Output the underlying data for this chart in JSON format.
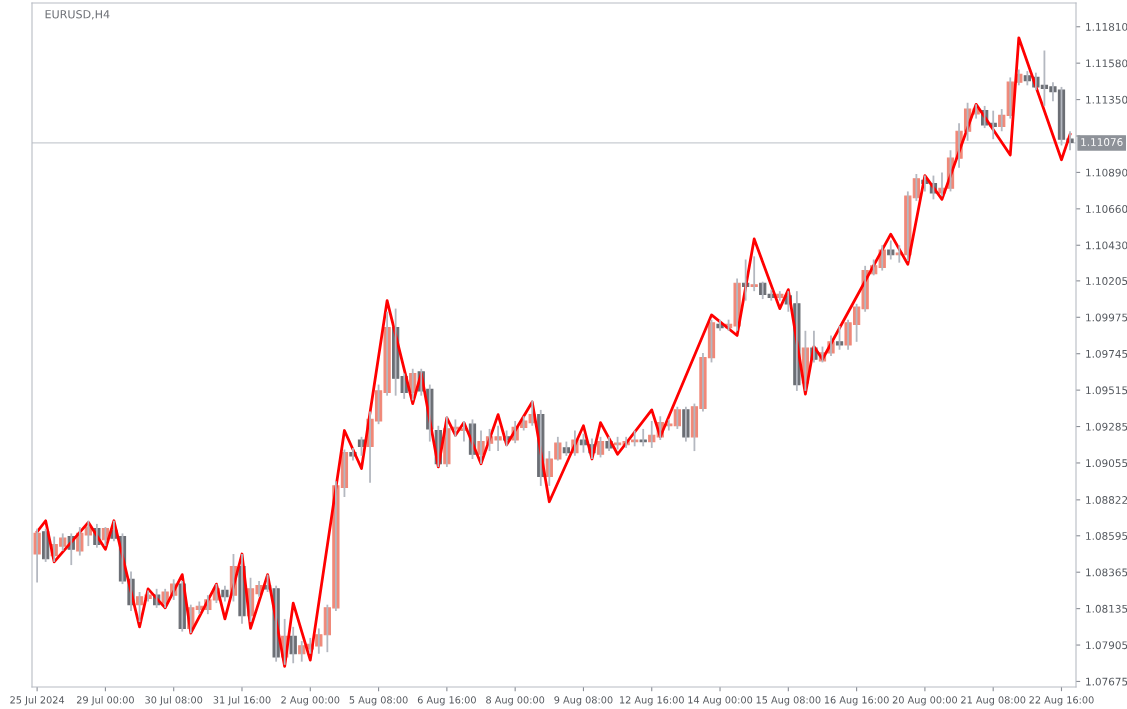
{
  "chart_data": {
    "type": "candlestick",
    "title": "EURUSD,H4",
    "grid": false,
    "categories": [
      "25 Jul 2024",
      null,
      null,
      null,
      null,
      null,
      null,
      null,
      "29 Jul 00:00",
      null,
      null,
      null,
      null,
      null,
      null,
      null,
      "30 Jul 08:00",
      null,
      null,
      null,
      null,
      null,
      null,
      null,
      "31 Jul 16:00",
      null,
      null,
      null,
      null,
      null,
      null,
      null,
      "2 Aug 00:00",
      null,
      null,
      null,
      null,
      null,
      null,
      null,
      "5 Aug 08:00",
      null,
      null,
      null,
      null,
      null,
      null,
      null,
      "6 Aug 16:00",
      null,
      null,
      null,
      null,
      null,
      null,
      null,
      "8 Aug 00:00",
      null,
      null,
      null,
      null,
      null,
      null,
      null,
      "9 Aug 08:00",
      null,
      null,
      null,
      null,
      null,
      null,
      null,
      "12 Aug 16:00",
      null,
      null,
      null,
      null,
      null,
      null,
      null,
      "14 Aug 00:00",
      null,
      null,
      null,
      null,
      null,
      null,
      null,
      "15 Aug 08:00",
      null,
      null,
      null,
      null,
      null,
      null,
      null,
      "16 Aug 16:00",
      null,
      null,
      null,
      null,
      null,
      null,
      null,
      "20 Aug 00:00",
      null,
      null,
      null,
      null,
      null,
      null,
      null,
      "21 Aug 08:00",
      null,
      null,
      null,
      null,
      null,
      null,
      null,
      "22 Aug 16:00",
      null
    ],
    "ylim": [
      1.0764,
      1.1196
    ],
    "yticks": [
      {
        "value": 1.07675,
        "label": "1.07675"
      },
      {
        "value": 1.07905,
        "label": "1.07905"
      },
      {
        "value": 1.08135,
        "label": "1.08135"
      },
      {
        "value": 1.08365,
        "label": "1.08365"
      },
      {
        "value": 1.08595,
        "label": "1.08595"
      },
      {
        "value": 1.08822,
        "label": "1.08822"
      },
      {
        "value": 1.09055,
        "label": "1.09055"
      },
      {
        "value": 1.09285,
        "label": "1.09285"
      },
      {
        "value": 1.09515,
        "label": "1.09515"
      },
      {
        "value": 1.09745,
        "label": "1.09745"
      },
      {
        "value": 1.09975,
        "label": "1.09975"
      },
      {
        "value": 1.10205,
        "label": "1.10205"
      },
      {
        "value": 1.1043,
        "label": "1.10430"
      },
      {
        "value": 1.1066,
        "label": "1.10660"
      },
      {
        "value": 1.1089,
        "label": "1.10890"
      },
      {
        "value": 1.1112,
        "label": null
      },
      {
        "value": 1.1135,
        "label": "1.11350"
      },
      {
        "value": 1.1158,
        "label": "1.11580"
      },
      {
        "value": 1.1181,
        "label": "1.11810"
      }
    ],
    "ref_lines": [
      {
        "axis": "y",
        "value": 1.11076,
        "label": "1.11076",
        "color": "#c8ccd2"
      }
    ],
    "ohlc": [
      [
        1.0848,
        1.0864,
        1.083,
        1.0861
      ],
      [
        1.0862,
        1.0864,
        1.0843,
        1.0845
      ],
      [
        1.0847,
        1.0859,
        1.0843,
        1.0854
      ],
      [
        1.0853,
        1.0861,
        1.085,
        1.0858
      ],
      [
        1.0859,
        1.0861,
        1.0841,
        1.0851
      ],
      [
        1.085,
        1.0865,
        1.0847,
        1.0861
      ],
      [
        1.086,
        1.0869,
        1.0853,
        1.0865
      ],
      [
        1.0864,
        1.0867,
        1.0852,
        1.0854
      ],
      [
        1.0857,
        1.0865,
        1.0853,
        1.0864
      ],
      [
        1.0863,
        1.0869,
        1.0856,
        1.0858
      ],
      [
        1.0859,
        1.0861,
        1.0829,
        1.0831
      ],
      [
        1.0832,
        1.0837,
        1.0812,
        1.0816
      ],
      [
        1.0816,
        1.0824,
        1.0805,
        1.0821
      ],
      [
        1.082,
        1.0825,
        1.0818,
        1.0822
      ],
      [
        1.0822,
        1.0826,
        1.0814,
        1.0816
      ],
      [
        1.0817,
        1.0826,
        1.0814,
        1.0824
      ],
      [
        1.0822,
        1.0832,
        1.0819,
        1.0829
      ],
      [
        1.0829,
        1.0831,
        1.0799,
        1.0801
      ],
      [
        1.0801,
        1.0816,
        1.0798,
        1.0814
      ],
      [
        1.0813,
        1.0818,
        1.081,
        1.0815
      ],
      [
        1.0813,
        1.0822,
        1.081,
        1.0819
      ],
      [
        1.0819,
        1.0829,
        1.0817,
        1.0826
      ],
      [
        1.0825,
        1.0828,
        1.0818,
        1.0821
      ],
      [
        1.0822,
        1.0848,
        1.0818,
        1.084
      ],
      [
        1.084,
        1.0848,
        1.0804,
        1.0809
      ],
      [
        1.0809,
        1.0833,
        1.0805,
        1.0826
      ],
      [
        1.0823,
        1.0831,
        1.0821,
        1.0828
      ],
      [
        1.0828,
        1.0835,
        1.0824,
        1.0826
      ],
      [
        1.0826,
        1.0828,
        1.078,
        1.0783
      ],
      [
        1.0783,
        1.0807,
        1.0778,
        1.0796
      ],
      [
        1.0796,
        1.0802,
        1.0779,
        1.0785
      ],
      [
        1.0785,
        1.0793,
        1.078,
        1.079
      ],
      [
        1.0788,
        1.0795,
        1.0785,
        1.0791
      ],
      [
        1.079,
        1.0801,
        1.0785,
        1.0797
      ],
      [
        1.0797,
        1.0816,
        1.0786,
        1.0814
      ],
      [
        1.0814,
        1.0894,
        1.0812,
        1.0891
      ],
      [
        1.089,
        1.0914,
        1.0884,
        1.0912
      ],
      [
        1.0912,
        1.0915,
        1.0907,
        1.091
      ],
      [
        1.092,
        1.0922,
        1.091,
        1.0916
      ],
      [
        1.0916,
        1.0938,
        1.0893,
        1.0933
      ],
      [
        1.0932,
        1.0955,
        1.093,
        1.0951
      ],
      [
        1.095,
        1.1001,
        1.0948,
        1.0991
      ],
      [
        1.0991,
        1.1003,
        1.0948,
        1.0959
      ],
      [
        1.096,
        1.0962,
        1.0946,
        1.095
      ],
      [
        1.095,
        1.0965,
        1.0945,
        1.0962
      ],
      [
        1.0963,
        1.0965,
        1.0948,
        1.0951
      ],
      [
        1.0952,
        1.0955,
        1.0919,
        1.0927
      ],
      [
        1.0926,
        1.0929,
        1.0903,
        1.0905
      ],
      [
        1.0905,
        1.0935,
        1.0903,
        1.0927
      ],
      [
        1.0927,
        1.0933,
        1.0922,
        1.0928
      ],
      [
        1.0926,
        1.0932,
        1.0919,
        1.0927
      ],
      [
        1.093,
        1.0933,
        1.0908,
        1.0911
      ],
      [
        1.0911,
        1.0926,
        1.0905,
        1.0919
      ],
      [
        1.0918,
        1.0927,
        1.0913,
        1.0922
      ],
      [
        1.092,
        1.0929,
        1.0913,
        1.0922
      ],
      [
        1.0922,
        1.0926,
        1.0916,
        1.092
      ],
      [
        1.092,
        1.0932,
        1.0918,
        1.0928
      ],
      [
        1.0928,
        1.0935,
        1.0926,
        1.0932
      ],
      [
        1.0931,
        1.0945,
        1.0929,
        1.0936
      ],
      [
        1.0936,
        1.0939,
        1.0891,
        1.0897
      ],
      [
        1.0897,
        1.0913,
        1.0891,
        1.0908
      ],
      [
        1.0908,
        1.0922,
        1.0907,
        1.0918
      ],
      [
        1.0915,
        1.0919,
        1.091,
        1.0912
      ],
      [
        1.0912,
        1.0926,
        1.091,
        1.092
      ],
      [
        1.092,
        1.0924,
        1.0912,
        1.0917
      ],
      [
        1.0917,
        1.0921,
        1.0908,
        1.0912
      ],
      [
        1.0911,
        1.0922,
        1.0909,
        1.0919
      ],
      [
        1.0919,
        1.0922,
        1.0913,
        1.0915
      ],
      [
        1.0917,
        1.0922,
        1.0914,
        1.0918
      ],
      [
        1.0917,
        1.0922,
        1.0915,
        1.0919
      ],
      [
        1.0919,
        1.0926,
        1.0916,
        1.092
      ],
      [
        1.092,
        1.0927,
        1.0916,
        1.0919
      ],
      [
        1.0919,
        1.0932,
        1.0915,
        1.0923
      ],
      [
        1.0922,
        1.0935,
        1.092,
        1.0931
      ],
      [
        1.0929,
        1.0933,
        1.0926,
        1.093
      ],
      [
        1.0929,
        1.0941,
        1.0927,
        1.0939
      ],
      [
        1.0939,
        1.0941,
        1.0919,
        1.0922
      ],
      [
        1.0922,
        1.0943,
        1.0913,
        1.0941
      ],
      [
        1.094,
        1.0975,
        1.0938,
        1.0972
      ],
      [
        1.0972,
        1.0996,
        1.0969,
        1.0994
      ],
      [
        1.0993,
        1.0996,
        1.0989,
        1.0991
      ],
      [
        1.0991,
        1.0996,
        1.0989,
        1.0993
      ],
      [
        1.0992,
        1.1022,
        1.0989,
        1.1019
      ],
      [
        1.1019,
        1.1034,
        1.1008,
        1.1017
      ],
      [
        1.1017,
        1.1036,
        1.1014,
        1.1018
      ],
      [
        1.1019,
        1.102,
        1.1009,
        1.1012
      ],
      [
        1.1012,
        1.1015,
        1.1008,
        1.101
      ],
      [
        1.101,
        1.1014,
        1.1008,
        1.1012
      ],
      [
        1.1011,
        1.1014,
        1.1001,
        1.1006
      ],
      [
        1.1006,
        1.1014,
        1.0951,
        1.0955
      ],
      [
        1.0956,
        1.0989,
        1.0951,
        1.0978
      ],
      [
        1.0978,
        1.0989,
        1.0969,
        1.0971
      ],
      [
        1.097,
        1.0979,
        1.0969,
        1.0975
      ],
      [
        1.0975,
        1.0986,
        1.0973,
        1.0982
      ],
      [
        1.0982,
        1.0992,
        1.0977,
        1.098
      ],
      [
        1.098,
        1.0996,
        1.0977,
        1.0994
      ],
      [
        1.0993,
        1.1006,
        1.0982,
        1.1004
      ],
      [
        1.1003,
        1.103,
        1.1001,
        1.1027
      ],
      [
        1.1025,
        1.1034,
        1.1024,
        1.103
      ],
      [
        1.1029,
        1.1043,
        1.1027,
        1.104
      ],
      [
        1.104,
        1.1046,
        1.1034,
        1.1037
      ],
      [
        1.1037,
        1.1043,
        1.1032,
        1.1038
      ],
      [
        1.1037,
        1.1077,
        1.1033,
        1.1074
      ],
      [
        1.1073,
        1.1088,
        1.1071,
        1.1085
      ],
      [
        1.1084,
        1.1087,
        1.1077,
        1.1082
      ],
      [
        1.1082,
        1.1087,
        1.1072,
        1.1076
      ],
      [
        1.1076,
        1.1089,
        1.1074,
        1.1079
      ],
      [
        1.1079,
        1.1103,
        1.1077,
        1.1098
      ],
      [
        1.1098,
        1.112,
        1.1092,
        1.1115
      ],
      [
        1.1115,
        1.1133,
        1.1109,
        1.1129
      ],
      [
        1.1126,
        1.1132,
        1.1123,
        1.1129
      ],
      [
        1.1128,
        1.1131,
        1.1117,
        1.1119
      ],
      [
        1.112,
        1.1128,
        1.111,
        1.1118
      ],
      [
        1.1118,
        1.1129,
        1.1115,
        1.1125
      ],
      [
        1.1125,
        1.1149,
        1.1123,
        1.1146
      ],
      [
        1.1146,
        1.1154,
        1.1144,
        1.1151
      ],
      [
        1.115,
        1.1153,
        1.1144,
        1.1147
      ],
      [
        1.1149,
        1.1152,
        1.1141,
        1.1143
      ],
      [
        1.1144,
        1.1166,
        1.1131,
        1.1142
      ],
      [
        1.1143,
        1.1146,
        1.1134,
        1.114
      ],
      [
        1.1141,
        1.1143,
        1.1106,
        1.111
      ],
      [
        1.111,
        1.1115,
        1.1103,
        1.1108
      ]
    ],
    "colors": [
      "#f08878",
      "#6b6e74",
      "#f08878",
      "#f08878",
      "#6b6e74",
      "#f08878",
      "#f08878",
      "#6b6e74",
      "#f08878",
      "#6b6e74",
      "#6b6e74",
      "#6b6e74",
      "#f08878",
      "#f08878",
      "#6b6e74",
      "#f08878",
      "#f08878",
      "#6b6e74",
      "#f08878",
      "#f08878",
      "#f08878",
      "#f08878",
      "#6b6e74",
      "#f08878",
      "#6b6e74",
      "#f08878",
      "#f08878",
      "#6b6e74",
      "#6b6e74",
      "#f08878",
      "#6b6e74",
      "#f08878",
      "#f08878",
      "#f08878",
      "#f08878",
      "#f08878",
      "#f08878",
      "#6b6e74",
      "#6b6e74",
      "#f08878",
      "#f08878",
      "#f08878",
      "#6b6e74",
      "#6b6e74",
      "#f08878",
      "#6b6e74",
      "#6b6e74",
      "#6b6e74",
      "#f08878",
      "#f08878",
      "#f08878",
      "#6b6e74",
      "#f08878",
      "#f08878",
      "#f08878",
      "#6b6e74",
      "#f08878",
      "#f08878",
      "#f08878",
      "#6b6e74",
      "#f08878",
      "#f08878",
      "#6b6e74",
      "#f08878",
      "#6b6e74",
      "#6b6e74",
      "#f08878",
      "#6b6e74",
      "#f08878",
      "#f08878",
      "#f08878",
      "#6b6e74",
      "#f08878",
      "#f08878",
      "#f08878",
      "#f08878",
      "#6b6e74",
      "#f08878",
      "#f08878",
      "#f08878",
      "#6b6e74",
      "#f08878",
      "#f08878",
      "#6b6e74",
      "#f08878",
      "#6b6e74",
      "#6b6e74",
      "#f08878",
      "#6b6e74",
      "#6b6e74",
      "#f08878",
      "#6b6e74",
      "#f08878",
      "#f08878",
      "#6b6e74",
      "#f08878",
      "#f08878",
      "#f08878",
      "#f08878",
      "#f08878",
      "#6b6e74",
      "#f08878",
      "#f08878",
      "#f08878",
      "#6b6e74",
      "#6b6e74",
      "#f08878",
      "#f08878",
      "#f08878",
      "#f08878",
      "#f08878",
      "#6b6e74",
      "#6b6e74",
      "#f08878",
      "#f08878",
      "#f08878",
      "#6b6e74",
      "#6b6e74",
      "#6b6e74",
      "#6b6e74",
      "#6b6e74",
      "#6b6e74"
    ],
    "series": [
      {
        "type": "line",
        "color": "#ff0000",
        "line_style": "solid",
        "marker": "none",
        "values": [
          1.0862,
          1.0869,
          1.0843,
          null,
          null,
          null,
          1.0868,
          null,
          1.0851,
          1.0869,
          null,
          null,
          1.0802,
          1.0826,
          null,
          1.0814,
          null,
          1.0835,
          1.0798,
          null,
          null,
          1.0829,
          1.0807,
          null,
          1.0848,
          1.0801,
          null,
          1.0835,
          null,
          1.0777,
          1.0817,
          null,
          1.0781,
          null,
          null,
          null,
          1.0926,
          null,
          1.0902,
          null,
          null,
          1.1008,
          null,
          null,
          1.0943,
          1.0962,
          null,
          1.0903,
          1.0934,
          1.0923,
          1.0931,
          null,
          1.0905,
          null,
          1.0936,
          1.0917,
          null,
          null,
          1.0944,
          null,
          1.0881,
          null,
          null,
          null,
          1.0929,
          1.0908,
          1.0931,
          null,
          1.0911,
          null,
          null,
          null,
          1.0939,
          1.0922,
          null,
          null,
          null,
          null,
          null,
          1.0999,
          null,
          null,
          1.0986,
          null,
          1.1047,
          null,
          null,
          1.1003,
          1.1015,
          null,
          1.0949,
          1.0979,
          1.0971,
          null,
          null,
          null,
          null,
          null,
          null,
          null,
          1.105,
          null,
          1.1031,
          null,
          1.1087,
          null,
          1.1072,
          null,
          null,
          null,
          1.1132,
          null,
          null,
          null,
          1.11,
          1.1174,
          null,
          null,
          null,
          null,
          1.1097,
          1.1113
        ]
      }
    ]
  }
}
